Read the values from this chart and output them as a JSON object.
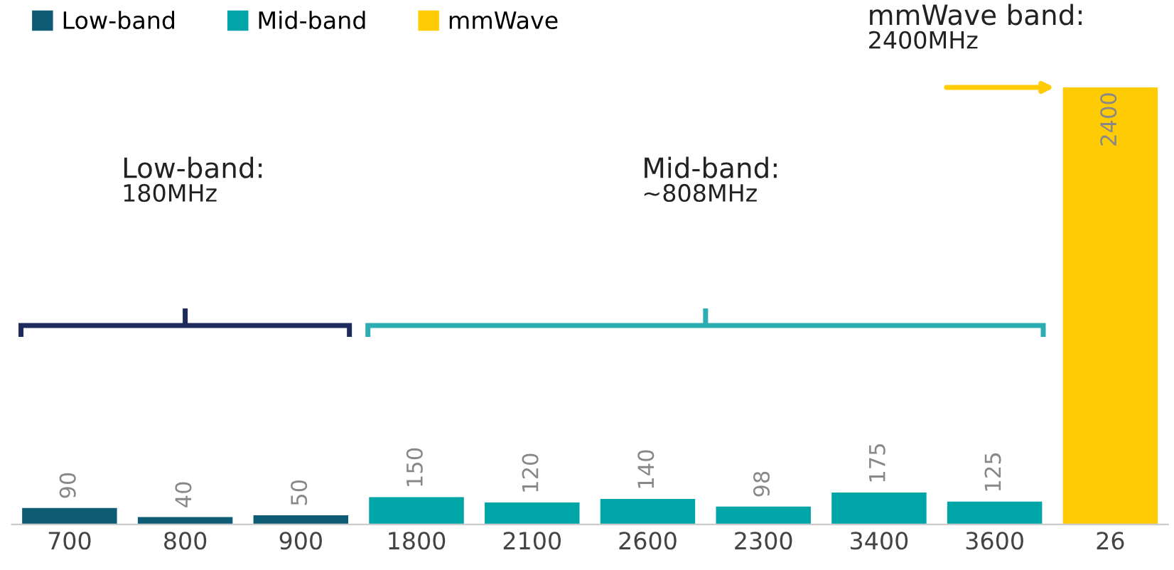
{
  "chart_data": {
    "type": "bar",
    "categories": [
      "700",
      "800",
      "900",
      "1800",
      "2100",
      "2600",
      "2300",
      "3400",
      "3600",
      "26"
    ],
    "series": [
      {
        "name": "Low-band",
        "color": "#0e5b74",
        "values": [
          90,
          40,
          50,
          null,
          null,
          null,
          null,
          null,
          null,
          null
        ]
      },
      {
        "name": "Mid-band",
        "color": "#00a5a8",
        "values": [
          null,
          null,
          null,
          150,
          120,
          140,
          98,
          175,
          125,
          null
        ]
      },
      {
        "name": "mmWave",
        "color": "#ffcb05",
        "values": [
          null,
          null,
          null,
          null,
          null,
          null,
          null,
          null,
          null,
          2400
        ]
      }
    ],
    "data_labels": true,
    "tick_labels": "x",
    "legend": "top left",
    "grid": false,
    "annotations": [
      "Low-band:\n180MHz",
      "Mid-band:\n~808MHz",
      "mmWave band:\n2400MHz"
    ]
  }
}
